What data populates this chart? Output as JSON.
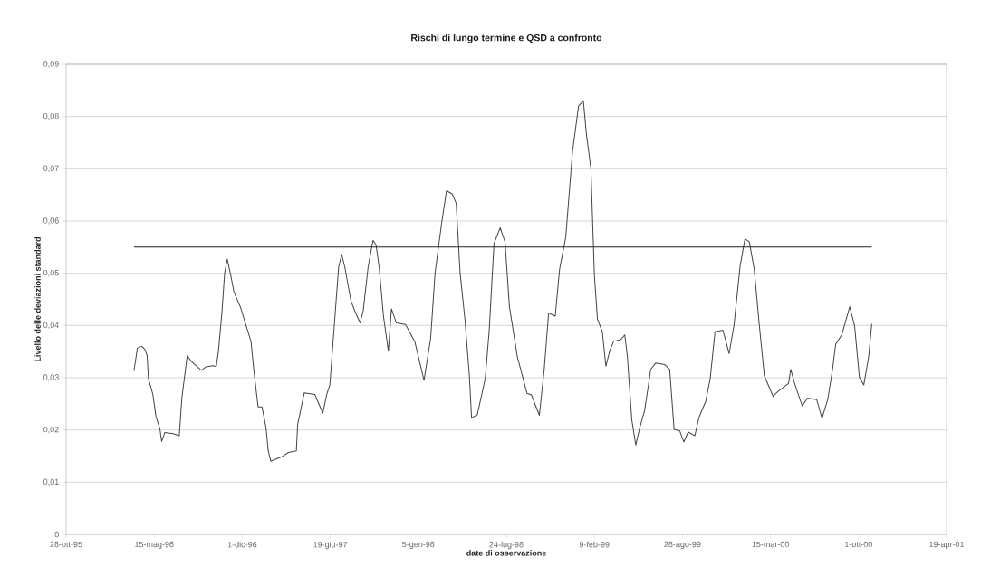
{
  "chart_data": {
    "type": "line",
    "title": "Rischi di lungo termine e QSD a confronto",
    "xlabel": "date di osservazione",
    "ylabel": "Livello delle deviazioni standard",
    "xlim": [
      "1995-10-28",
      "2001-04-19"
    ],
    "xticks": [
      {
        "value": "1995-10-28",
        "label": "28-ott-95"
      },
      {
        "value": "1996-05-15",
        "label": "15-mag-96"
      },
      {
        "value": "1996-12-01",
        "label": "1-dic-96"
      },
      {
        "value": "1997-06-19",
        "label": "19-giu-97"
      },
      {
        "value": "1998-01-05",
        "label": "5-gen-98"
      },
      {
        "value": "1998-07-24",
        "label": "24-lug-98"
      },
      {
        "value": "1999-02-09",
        "label": "9-feb-99"
      },
      {
        "value": "1999-08-28",
        "label": "28-ago-99"
      },
      {
        "value": "2000-03-15",
        "label": "15-mar-00"
      },
      {
        "value": "2000-10-01",
        "label": "1-ott-00"
      },
      {
        "value": "2001-04-19",
        "label": "19-apr-01"
      }
    ],
    "ylim": [
      0,
      0.09
    ],
    "yticks": [
      0,
      {
        "value": 0.01,
        "label": "0,01"
      },
      {
        "value": 0.02,
        "label": "0,02"
      },
      {
        "value": 0.03,
        "label": "0,03"
      },
      {
        "value": 0.04,
        "label": "0,04"
      },
      {
        "value": 0.05,
        "label": "0,05"
      },
      {
        "value": 0.06,
        "label": "0,06"
      },
      {
        "value": 0.07,
        "label": "0,07"
      },
      {
        "value": 0.08,
        "label": "0,08"
      },
      {
        "value": 0.09,
        "label": "0,09"
      }
    ],
    "grid": "y",
    "marker": "none",
    "line_style": "solid",
    "series": [
      {
        "color": "#444444",
        "x": [
          "1996-03-30",
          "1996-04-07",
          "1996-04-17",
          "1996-04-24",
          "1996-04-29",
          "1996-05-02",
          "1996-05-12",
          "1996-05-19",
          "1996-05-28",
          "1996-06-01",
          "1996-06-08",
          "1996-06-27",
          "1996-07-11",
          "1996-07-17",
          "1996-07-29",
          "1996-08-09",
          "1996-08-30",
          "1996-09-10",
          "1996-09-27",
          "1996-10-03",
          "1996-10-08",
          "1996-10-16",
          "1996-10-22",
          "1996-10-28",
          "1996-11-04",
          "1996-11-12",
          "1996-11-27",
          "1996-12-21",
          "1996-12-28",
          "1997-01-06",
          "1997-01-15",
          "1997-01-24",
          "1997-01-29",
          "1997-02-04",
          "1997-02-12",
          "1997-03-02",
          "1997-03-16",
          "1997-04-03",
          "1997-04-06",
          "1997-04-21",
          "1997-05-15",
          "1997-06-02",
          "1997-06-11",
          "1997-06-18",
          "1997-06-27",
          "1997-07-08",
          "1997-07-15",
          "1997-07-22",
          "1997-08-05",
          "1997-08-16",
          "1997-08-26",
          "1997-09-02",
          "1997-09-13",
          "1997-09-24",
          "1997-10-01",
          "1997-10-08",
          "1997-10-18",
          "1997-10-29",
          "1997-11-05",
          "1997-11-16",
          "1997-12-07",
          "1997-12-28",
          "1998-01-18",
          "1998-02-02",
          "1998-02-12",
          "1998-02-27",
          "1998-03-10",
          "1998-03-23",
          "1998-04-01",
          "1998-04-10",
          "1998-04-21",
          "1998-05-01",
          "1998-05-06",
          "1998-05-19",
          "1998-06-06",
          "1998-06-15",
          "1998-06-26",
          "1998-07-10",
          "1998-07-21",
          "1998-07-31",
          "1998-08-18",
          "1998-09-09",
          "1998-09-19",
          "1998-10-07",
          "1998-10-18",
          "1998-10-28",
          "1998-11-12",
          "1998-11-22",
          "1998-12-06",
          "1998-12-21",
          "1999-01-04",
          "1999-01-15",
          "1999-01-22",
          "1999-02-01",
          "1999-02-09",
          "1999-02-16",
          "1999-02-27",
          "1999-03-07",
          "1999-03-16",
          "1999-03-25",
          "1999-04-10",
          "1999-04-19",
          "1999-04-25",
          "1999-05-05",
          "1999-05-14",
          "1999-05-23",
          "1999-06-03",
          "1999-06-17",
          "1999-06-28",
          "1999-07-19",
          "1999-07-30",
          "1999-08-09",
          "1999-08-22",
          "1999-08-31",
          "1999-09-10",
          "1999-09-25",
          "1999-10-05",
          "1999-10-20",
          "1999-10-30",
          "1999-11-10",
          "1999-11-28",
          "1999-12-12",
          "1999-12-23",
          "2000-01-06",
          "2000-01-17",
          "2000-01-27",
          "2000-02-07",
          "2000-02-18",
          "2000-03-01",
          "2000-03-21",
          "2000-03-31",
          "2000-04-25",
          "2000-04-30",
          "2000-05-10",
          "2000-05-26",
          "2000-06-07",
          "2000-06-28",
          "2000-07-10",
          "2000-07-23",
          "2000-08-03",
          "2000-08-10",
          "2000-08-24",
          "2000-09-11",
          "2000-09-22",
          "2000-10-03",
          "2000-10-13",
          "2000-10-24",
          "2000-10-31"
        ],
        "values": [
          0.0313,
          0.0357,
          0.036,
          0.0354,
          0.0342,
          0.0298,
          0.0268,
          0.0226,
          0.0202,
          0.0178,
          0.0195,
          0.0193,
          0.0189,
          0.0262,
          0.0342,
          0.033,
          0.0314,
          0.0321,
          0.0323,
          0.0321,
          0.0351,
          0.0426,
          0.05,
          0.0527,
          0.05,
          0.0465,
          0.0435,
          0.0369,
          0.031,
          0.0244,
          0.0244,
          0.0205,
          0.016,
          0.014,
          0.0143,
          0.0149,
          0.0157,
          0.016,
          0.0211,
          0.0271,
          0.0268,
          0.0232,
          0.0268,
          0.0286,
          0.0387,
          0.0512,
          0.0536,
          0.0512,
          0.0447,
          0.0423,
          0.0405,
          0.0429,
          0.0512,
          0.0563,
          0.0554,
          0.0512,
          0.0417,
          0.0351,
          0.0432,
          0.0405,
          0.0402,
          0.0369,
          0.0295,
          0.0375,
          0.05,
          0.0596,
          0.0658,
          0.0652,
          0.0634,
          0.05,
          0.0411,
          0.0304,
          0.0223,
          0.0229,
          0.0298,
          0.039,
          0.0557,
          0.0587,
          0.056,
          0.0436,
          0.034,
          0.027,
          0.0267,
          0.0228,
          0.0316,
          0.0424,
          0.0418,
          0.0508,
          0.0569,
          0.0731,
          0.082,
          0.083,
          0.0765,
          0.0701,
          0.0496,
          0.0412,
          0.0388,
          0.0322,
          0.0352,
          0.037,
          0.0373,
          0.0382,
          0.034,
          0.0219,
          0.0171,
          0.0204,
          0.0237,
          0.0316,
          0.0328,
          0.0325,
          0.0316,
          0.0201,
          0.0198,
          0.0177,
          0.0196,
          0.0189,
          0.0225,
          0.0255,
          0.0298,
          0.0388,
          0.0391,
          0.0346,
          0.04,
          0.0514,
          0.0566,
          0.056,
          0.0508,
          0.0406,
          0.0304,
          0.0264,
          0.0273,
          0.0289,
          0.0316,
          0.0286,
          0.0246,
          0.0261,
          0.0258,
          0.0222,
          0.0258,
          0.0316,
          0.0364,
          0.0382,
          0.0436,
          0.04,
          0.0301,
          0.0286,
          0.034,
          0.0403
        ]
      },
      {
        "color": "#222222",
        "x": [
          "1996-03-30",
          "2000-10-31"
        ],
        "values": [
          0.055,
          0.055
        ]
      }
    ]
  }
}
